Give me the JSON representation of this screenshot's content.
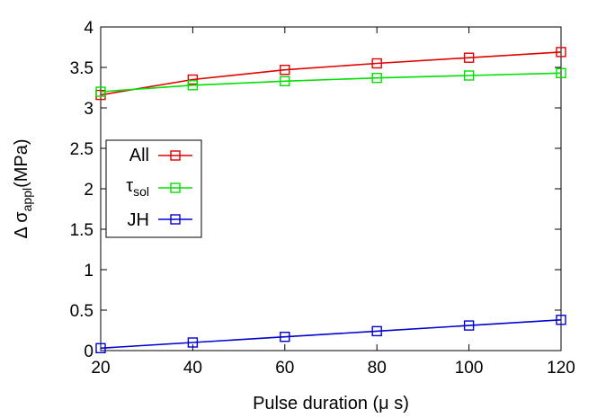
{
  "chart_data": {
    "type": "line",
    "xlabel": "Pulse duration (μ s)",
    "ylabel": {
      "prefix": "Δ σ",
      "subscript": "appl",
      "suffix": "(MPa)"
    },
    "xlim": [
      20,
      120
    ],
    "ylim": [
      0,
      4
    ],
    "xticks": [
      20,
      40,
      60,
      80,
      100,
      120
    ],
    "yticks": [
      0,
      0.5,
      1,
      1.5,
      2,
      2.5,
      3,
      3.5,
      4
    ],
    "xtick_labels": [
      "20",
      "40",
      "60",
      "80",
      "100",
      "120"
    ],
    "ytick_labels": [
      "0",
      "0.5",
      "1",
      "1.5",
      "2",
      "2.5",
      "3",
      "3.5",
      "4"
    ],
    "grid": false,
    "legend_position": "center-left",
    "x": [
      20,
      40,
      60,
      80,
      100,
      120
    ],
    "series": [
      {
        "name": "All",
        "color": "#e00000",
        "marker": "square",
        "values": [
          3.16,
          3.35,
          3.47,
          3.55,
          3.62,
          3.69
        ]
      },
      {
        "name": "τ_sol",
        "legend_main": "τ",
        "legend_sub": "sol",
        "color": "#00e000",
        "marker": "square",
        "values": [
          3.2,
          3.28,
          3.33,
          3.37,
          3.4,
          3.43
        ]
      },
      {
        "name": "JH",
        "color": "#0000d0",
        "marker": "square",
        "values": [
          0.03,
          0.1,
          0.17,
          0.24,
          0.31,
          0.38
        ]
      }
    ]
  }
}
